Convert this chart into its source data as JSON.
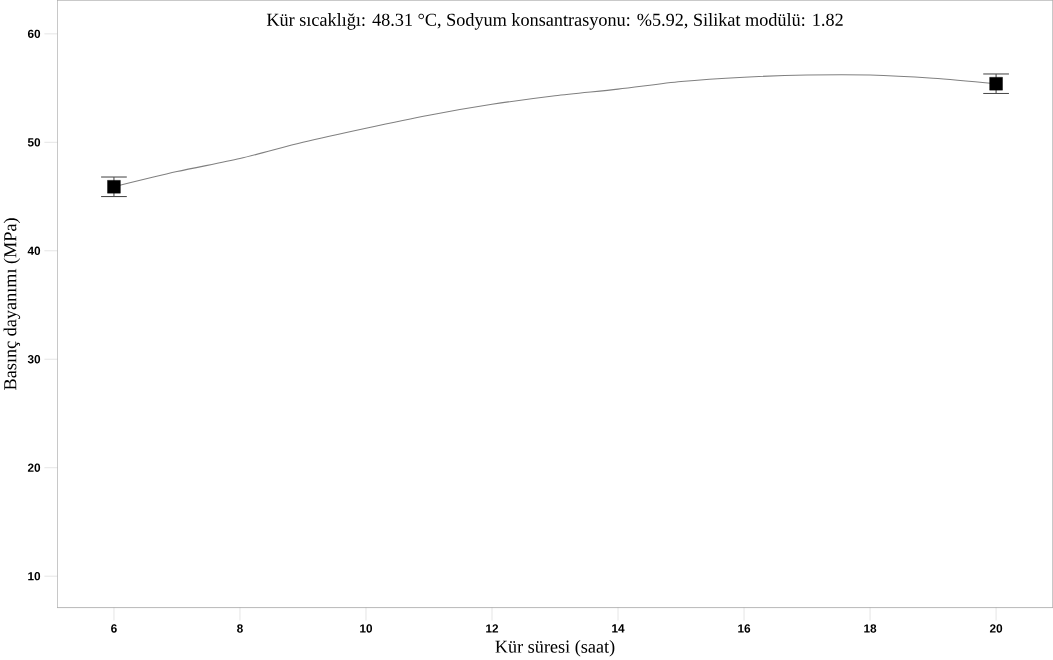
{
  "chart_data": {
    "type": "line",
    "xlabel": "Kür süresi (saat)",
    "ylabel": "Basınç dayanımı (MPa)",
    "annotations": [
      "Kür sıcaklığı: 48.31 °C, Sodyum konsantrasyonu: %5.92, Silikat modülü: 1.82"
    ],
    "xlim": [
      5.1,
      20.9
    ],
    "xticks": [
      6,
      8,
      10,
      12,
      14,
      16,
      18,
      20
    ],
    "ylim": [
      7.1,
      63.1
    ],
    "yticks": [
      10,
      20,
      30,
      40,
      50,
      60
    ],
    "grid": false,
    "series": [
      {
        "color": "#808080",
        "marker": "none",
        "x": [
          6,
          7,
          8,
          9,
          10,
          11,
          12,
          13,
          14,
          15,
          16,
          17,
          18,
          19,
          20
        ],
        "values": [
          45.9,
          47.3,
          48.5,
          50.0,
          51.3,
          52.5,
          53.5,
          54.3,
          54.9,
          55.6,
          56.0,
          56.2,
          56.2,
          55.9,
          55.4
        ]
      },
      {
        "type": "scatter",
        "color": "#000000",
        "marker": "square",
        "x": [
          6,
          20
        ],
        "values": [
          45.9,
          55.4
        ],
        "errors": [
          [
            45.0,
            46.8
          ],
          [
            54.5,
            56.3
          ]
        ]
      }
    ]
  }
}
